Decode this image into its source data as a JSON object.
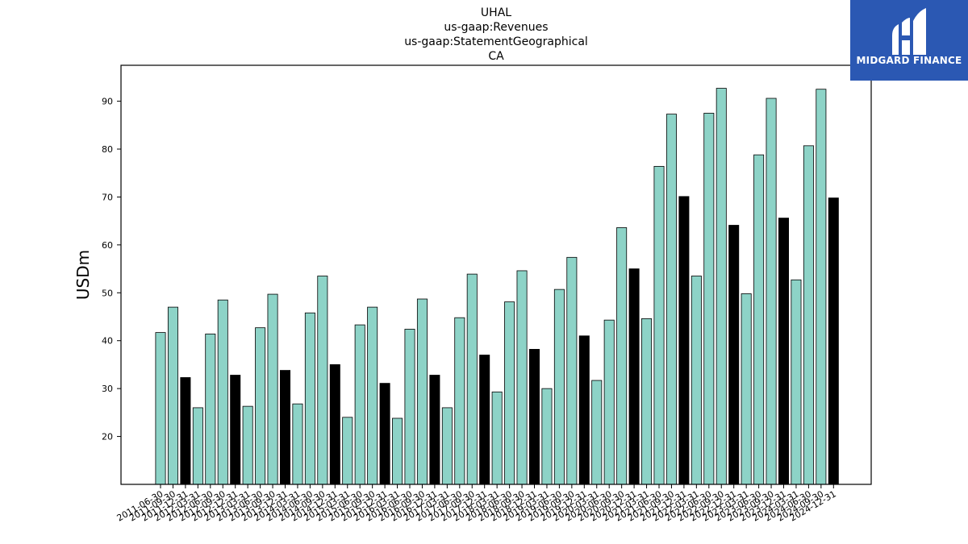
{
  "header": {
    "lines": [
      "UHAL",
      "us-gaap:Revenues",
      "us-gaap:StatementGeographical",
      "CA"
    ]
  },
  "logo": {
    "text": "MIDGARD FINANCE",
    "icon": "midgard-logo-icon",
    "background": "#2b58b3"
  },
  "colors": {
    "regular": "#8dd3c7",
    "annual": "#000000",
    "edge": "#000000"
  },
  "chart_data": {
    "type": "bar",
    "ylabel": "USDm",
    "xlabel": "",
    "yticks": [
      20,
      30,
      40,
      50,
      60,
      70,
      80,
      90
    ],
    "ylim": [
      10,
      97.5
    ],
    "grid": false,
    "categories": [
      "2011-06-30",
      "2011-09-30",
      "2011-12-31",
      "2012-03-31",
      "2012-06-30",
      "2012-09-30",
      "2012-12-31",
      "2013-03-31",
      "2013-06-30",
      "2013-09-30",
      "2013-12-31",
      "2014-03-31",
      "2014-06-30",
      "2014-09-30",
      "2014-12-31",
      "2015-03-31",
      "2015-06-30",
      "2015-09-30",
      "2015-12-31",
      "2016-03-31",
      "2016-06-30",
      "2016-09-30",
      "2016-12-31",
      "2017-03-31",
      "2017-06-30",
      "2017-09-30",
      "2017-12-31",
      "2018-03-31",
      "2018-06-30",
      "2018-09-30",
      "2018-12-31",
      "2019-03-31",
      "2019-06-30",
      "2019-09-30",
      "2019-12-31",
      "2020-03-31",
      "2020-06-30",
      "2020-09-30",
      "2020-12-31",
      "2021-03-31",
      "2021-06-30",
      "2021-09-30",
      "2021-12-31",
      "2022-03-31",
      "2022-06-30",
      "2022-09-30",
      "2022-12-31",
      "2023-03-31",
      "2023-06-30",
      "2023-09-30",
      "2023-12-31",
      "2024-03-31",
      "2024-06-30",
      "2024-09-30",
      "2024-12-31"
    ],
    "values": [
      41.7,
      47.0,
      32.3,
      26.0,
      41.4,
      48.5,
      32.8,
      26.3,
      42.7,
      49.7,
      33.8,
      26.8,
      45.8,
      53.5,
      35.0,
      24.0,
      43.3,
      47.0,
      31.1,
      23.8,
      42.4,
      48.7,
      32.8,
      26.0,
      44.8,
      53.9,
      37.0,
      29.3,
      48.1,
      54.6,
      38.2,
      30.0,
      50.7,
      57.4,
      41.0,
      31.7,
      44.3,
      63.6,
      55.0,
      44.6,
      76.4,
      87.3,
      70.1,
      53.5,
      87.5,
      92.7,
      64.1,
      49.8,
      78.8,
      90.6,
      65.6,
      52.7,
      80.7,
      92.5,
      69.8
    ],
    "highlight_every": 4,
    "highlight_offset": 2
  }
}
